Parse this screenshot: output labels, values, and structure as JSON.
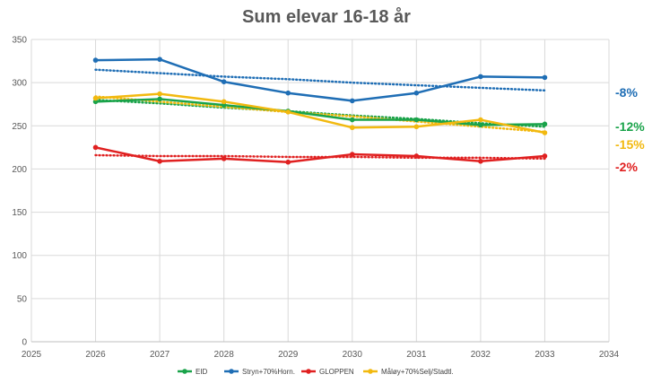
{
  "chart_data": {
    "type": "line",
    "title": "Sum elevar 16-18 år",
    "xlabel": "",
    "ylabel": "",
    "xlim": [
      2025,
      2034
    ],
    "ylim": [
      0,
      350
    ],
    "x_ticks": [
      2025,
      2026,
      2027,
      2028,
      2029,
      2030,
      2031,
      2032,
      2033,
      2034
    ],
    "y_ticks": [
      0,
      50,
      100,
      150,
      200,
      250,
      300,
      350
    ],
    "grid": true,
    "legend_position": "bottom",
    "x": [
      2026,
      2027,
      2028,
      2029,
      2030,
      2031,
      2032,
      2033
    ],
    "series": [
      {
        "name": "EID",
        "color": "#1aa34a",
        "values": [
          278,
          281,
          274,
          267,
          257,
          257,
          251,
          252
        ],
        "trendline": [
          280,
          276,
          271,
          267,
          262,
          258,
          253,
          249
        ],
        "change_label": "-12%"
      },
      {
        "name": "Stryn+70%Horn.",
        "color": "#1f6eb5",
        "values": [
          326,
          327,
          301,
          288,
          279,
          288,
          307,
          306
        ],
        "trendline": [
          315,
          311,
          307,
          304,
          300,
          297,
          294,
          291
        ],
        "change_label": "-8%"
      },
      {
        "name": "GLOPPEN",
        "color": "#e02020",
        "values": [
          225,
          209,
          212,
          208,
          217,
          215,
          209,
          215
        ],
        "trendline": [
          216,
          215,
          215,
          214,
          214,
          213,
          213,
          212
        ],
        "change_label": "-2%"
      },
      {
        "name": "Måløy+70%Selj/Stadtl.",
        "color": "#f2b90f",
        "values": [
          282,
          287,
          278,
          266,
          248,
          249,
          257,
          242
        ],
        "trendline": [
          284,
          278,
          272,
          266,
          261,
          255,
          249,
          243
        ],
        "change_label": "-15%"
      }
    ]
  }
}
